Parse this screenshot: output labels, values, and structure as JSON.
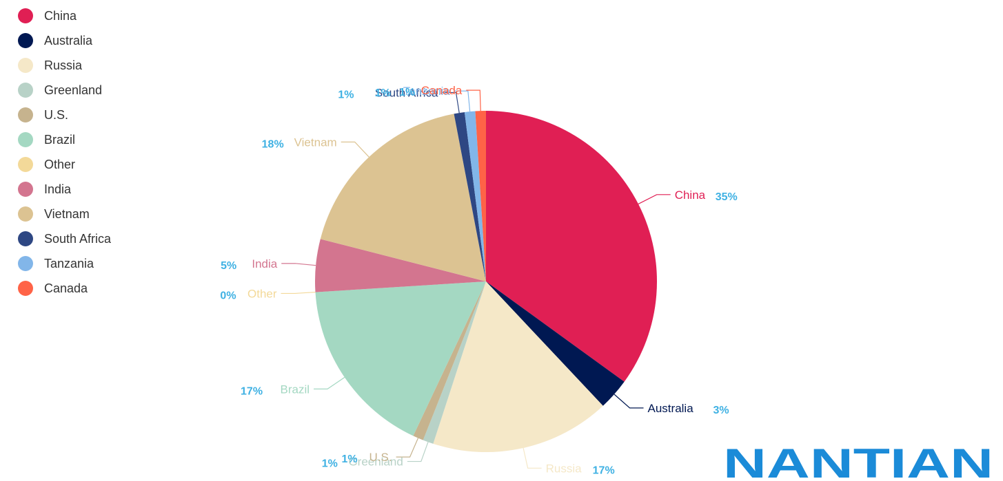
{
  "chart_data": {
    "type": "pie",
    "start": "top",
    "direction": "clockwise",
    "slices": [
      {
        "name": "China",
        "value": 35,
        "label": "35%",
        "color": "#e01f54"
      },
      {
        "name": "Australia",
        "value": 3,
        "label": "3%",
        "color": "#001852"
      },
      {
        "name": "Russia",
        "value": 17,
        "label": "17%",
        "color": "#f5e8c8"
      },
      {
        "name": "Greenland",
        "value": 1,
        "label": "1%",
        "color": "#b8d2c7"
      },
      {
        "name": "U.S.",
        "value": 1,
        "label": "1%",
        "color": "#c6b38e"
      },
      {
        "name": "Brazil",
        "value": 17,
        "label": "17%",
        "color": "#a4d8c2"
      },
      {
        "name": "Other",
        "value": 0,
        "label": "0%",
        "color": "#f3d999"
      },
      {
        "name": "India",
        "value": 5,
        "label": "5%",
        "color": "#d3758f"
      },
      {
        "name": "Vietnam",
        "value": 18,
        "label": "18%",
        "color": "#dcc392"
      },
      {
        "name": "South Africa",
        "value": 1,
        "label": "1%",
        "color": "#2e4783"
      },
      {
        "name": "Tanzania",
        "value": 1,
        "label": "1%",
        "color": "#82b6e9"
      },
      {
        "name": "Canada",
        "value": 1,
        "label": "1%",
        "color": "#ff6347"
      }
    ],
    "legend_position": "top-left",
    "percent_label_color": "#3fb1e3"
  },
  "logo": {
    "text": "NANTIAN",
    "color": "#1b8bd8",
    "accent_color": "#f39800"
  }
}
